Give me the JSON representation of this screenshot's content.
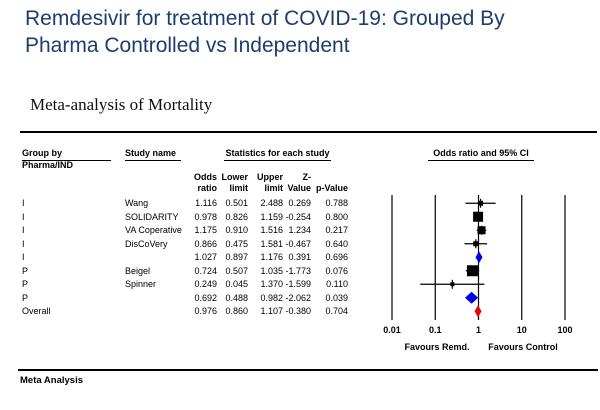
{
  "title": {
    "line1": "Remdesivir for treatment of COVID-19: Grouped By",
    "line2": "Pharma Controlled vs Independent",
    "color": "#1c3e6e"
  },
  "subtitle": "Meta-analysis of Mortality",
  "footer_label": "Meta Analysis",
  "table": {
    "group_header_line1": "Group by",
    "group_header_line2": "Pharma/IND",
    "study_header": "Study name",
    "stats_header": "Statistics for each study",
    "plot_header": "Odds ratio and 95% CI",
    "stat_cols": [
      {
        "l1": "Odds",
        "l2": "ratio"
      },
      {
        "l1": "Lower",
        "l2": "limit"
      },
      {
        "l1": "Upper",
        "l2": "limit"
      },
      {
        "l1": "",
        "l2": "Z-Value"
      },
      {
        "l1": "",
        "l2": "p-Value"
      }
    ]
  },
  "chart_data": {
    "type": "forest",
    "title": "Remdesivir for treatment of COVID-19: Grouped By Pharma Controlled vs Independent",
    "subtitle": "Meta-analysis of Mortality",
    "effect_measure": "Odds ratio",
    "x_scale": "log10",
    "x_ticks": [
      0.01,
      0.1,
      1,
      10,
      100
    ],
    "x_tick_labels": [
      "0.01",
      "0.1",
      "1",
      "10",
      "100"
    ],
    "x_axis_labels": {
      "left": "Favours Remd.",
      "right": "Favours Control"
    },
    "colors": {
      "study_marker": "#000000",
      "group_summary": "#0000ee",
      "overall_summary": "#ee0000"
    },
    "rows": [
      {
        "group": "I",
        "study": "Wang",
        "odds_ratio": "1.116",
        "lower_limit": "0.501",
        "upper_limit": "2.488",
        "z_value": "0.269",
        "p_value": "0.788",
        "marker": "square",
        "size": 5,
        "color": "#000000"
      },
      {
        "group": "I",
        "study": "SOLIDARITY",
        "odds_ratio": "0.978",
        "lower_limit": "0.826",
        "upper_limit": "1.159",
        "z_value": "-0.254",
        "p_value": "0.800",
        "marker": "square",
        "size": 10,
        "color": "#000000"
      },
      {
        "group": "I",
        "study": "VA Coperative",
        "odds_ratio": "1.175",
        "lower_limit": "0.910",
        "upper_limit": "1.516",
        "z_value": "1.234",
        "p_value": "0.217",
        "marker": "square",
        "size": 8,
        "color": "#000000"
      },
      {
        "group": "I",
        "study": "DisCoVery",
        "odds_ratio": "0.866",
        "lower_limit": "0.475",
        "upper_limit": "1.581",
        "z_value": "-0.467",
        "p_value": "0.640",
        "marker": "square",
        "size": 5,
        "color": "#000000"
      },
      {
        "group": "I",
        "study": "",
        "odds_ratio": "1.027",
        "lower_limit": "0.897",
        "upper_limit": "1.176",
        "z_value": "0.391",
        "p_value": "0.696",
        "marker": "diamond",
        "size": 12,
        "color": "#0000ee"
      },
      {
        "group": "P",
        "study": "Beigel",
        "odds_ratio": "0.724",
        "lower_limit": "0.507",
        "upper_limit": "1.035",
        "z_value": "-1.773",
        "p_value": "0.076",
        "marker": "square",
        "size": 11,
        "color": "#000000"
      },
      {
        "group": "P",
        "study": "Spinner",
        "odds_ratio": "0.249",
        "lower_limit": "0.045",
        "upper_limit": "1.370",
        "z_value": "-1.599",
        "p_value": "0.110",
        "marker": "square",
        "size": 4,
        "color": "#000000"
      },
      {
        "group": "P",
        "study": "",
        "odds_ratio": "0.692",
        "lower_limit": "0.488",
        "upper_limit": "0.982",
        "z_value": "-2.062",
        "p_value": "0.039",
        "marker": "diamond",
        "size": 12,
        "color": "#0000ee"
      },
      {
        "group": "Overall",
        "study": "",
        "odds_ratio": "0.976",
        "lower_limit": "0.860",
        "upper_limit": "1.107",
        "z_value": "-0.380",
        "p_value": "0.704",
        "marker": "diamond",
        "size": 12,
        "color": "#ee0000"
      }
    ]
  }
}
